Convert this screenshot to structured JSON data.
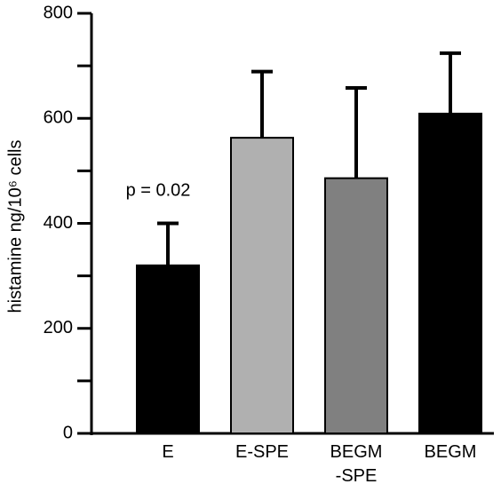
{
  "chart_data": {
    "type": "bar",
    "y_label": "histamine ng/10⁶ cells",
    "annotation": "p = 0.02",
    "categories": [
      "E",
      "E-SPE",
      "BEGM -SPE",
      "BEGM"
    ],
    "values": [
      320,
      563,
      486,
      609
    ],
    "errors": [
      80,
      126,
      172,
      115
    ],
    "colors": [
      "#000000",
      "#b0b0b0",
      "#808080",
      "#000000"
    ],
    "ylim": [
      0,
      800
    ],
    "yticks": [
      0,
      200,
      400,
      600,
      800
    ],
    "yminorticks": [
      100,
      300,
      500,
      700
    ]
  }
}
